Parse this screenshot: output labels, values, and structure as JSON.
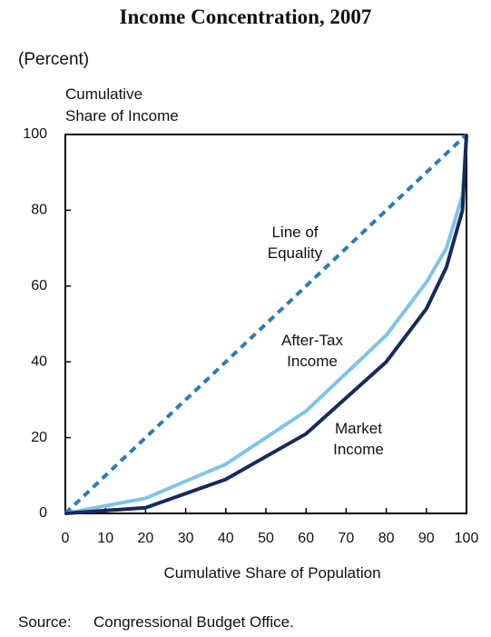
{
  "chart_data": {
    "type": "line",
    "title": "Income Concentration, 2007",
    "subtitle": "(Percent)",
    "y_label": [
      "Cumulative",
      "Share of Income"
    ],
    "x_label": "Cumulative Share of Population",
    "x": [
      0,
      20,
      40,
      60,
      80,
      90,
      95,
      99,
      100
    ],
    "series": [
      {
        "name": "Line of Equality",
        "color": "#2b7db5",
        "dashed": true,
        "values": [
          0,
          20,
          40,
          60,
          80,
          90,
          95,
          99,
          100
        ]
      },
      {
        "name": "After-Tax Income",
        "color": "#7fc4e8",
        "dashed": false,
        "values": [
          0,
          4,
          13,
          27,
          47,
          61,
          70,
          84,
          100
        ]
      },
      {
        "name": "Market Income",
        "color": "#172a5c",
        "dashed": false,
        "values": [
          0,
          1.5,
          9,
          21,
          40,
          54,
          65,
          80,
          100
        ]
      }
    ],
    "xlim": [
      0,
      100
    ],
    "xticks": [
      0,
      10,
      20,
      30,
      40,
      50,
      60,
      70,
      80,
      90,
      100
    ],
    "ylim": [
      0,
      100
    ],
    "yticks": [
      0,
      20,
      40,
      60,
      80,
      100
    ],
    "grid": false,
    "source_label": "Source:",
    "source": "Congressional Budget Office."
  }
}
